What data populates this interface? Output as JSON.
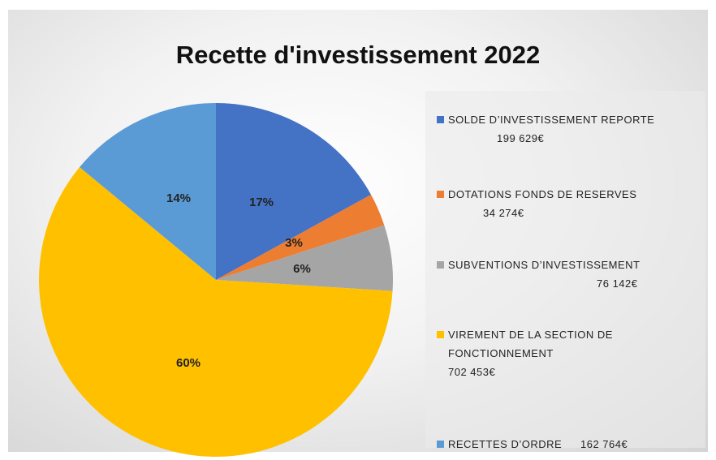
{
  "chart_data": {
    "type": "pie",
    "title": "Recette d'investissement 2022",
    "categories": [
      "SOLDE D’INVESTISSEMENT REPORTE",
      "DOTATIONS FONDS DE RESERVES",
      "SUBVENTIONS D’INVESTISSEMENT",
      "VIREMENT DE LA SECTION DE FONCTIONNEMENT",
      "RECETTES D’ORDRE"
    ],
    "amounts": [
      "199 629€",
      "34 274€",
      "76 142€",
      "702 453€",
      "162 764€"
    ],
    "values": [
      17,
      3,
      6,
      60,
      14
    ],
    "value_labels": [
      "17%",
      "3%",
      "6%",
      "60%",
      "14%"
    ],
    "colors": [
      "#4472c4",
      "#ed7d31",
      "#a5a5a5",
      "#ffc000",
      "#5b9bd5"
    ]
  }
}
